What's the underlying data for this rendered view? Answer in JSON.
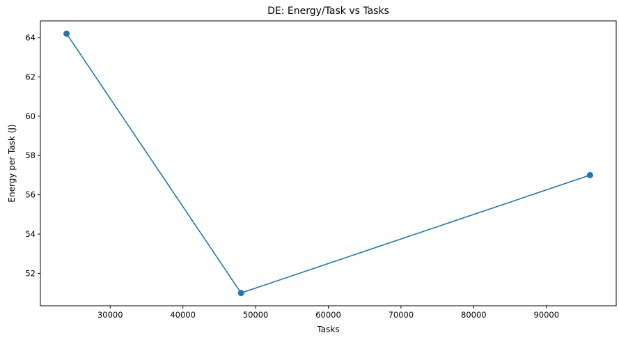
{
  "chart_data": {
    "type": "line",
    "title": "DE: Energy/Task vs Tasks",
    "xlabel": "Tasks",
    "ylabel": "Energy per Task (J)",
    "x": [
      24000,
      48000,
      96000
    ],
    "series": [
      {
        "values": [
          64.2,
          51.0,
          57.0
        ],
        "color": "#1f77b4",
        "marker": "circle"
      }
    ],
    "xlim": [
      20400,
      99600
    ],
    "ylim": [
      50.35,
      64.85
    ],
    "xticks": [
      30000,
      40000,
      50000,
      60000,
      70000,
      80000,
      90000
    ],
    "yticks": [
      52,
      54,
      56,
      58,
      60,
      62,
      64
    ],
    "grid": false,
    "legend": "none"
  }
}
